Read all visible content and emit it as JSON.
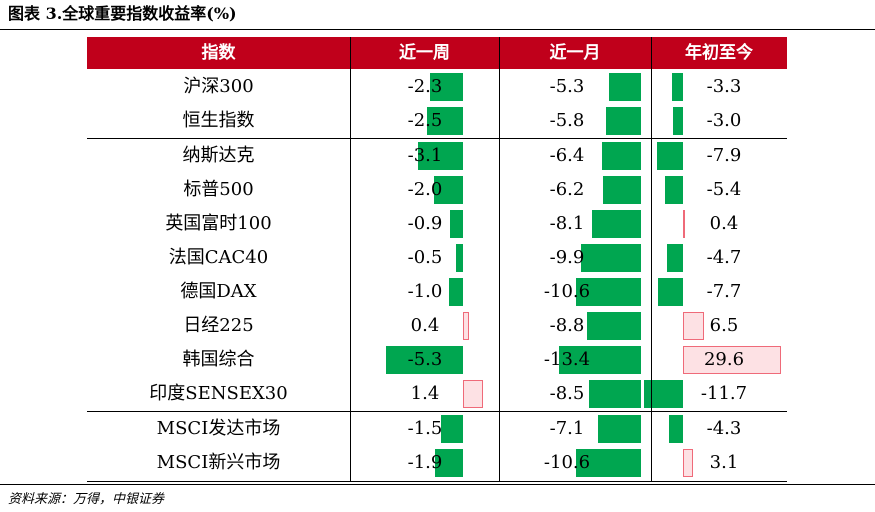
{
  "title": "图表 3.全球重要指数收益率(%)",
  "source": "资料来源：万得，中银证券",
  "columns": [
    "指数",
    "近一周",
    "近一月",
    "年初至今"
  ],
  "colors": {
    "header_bg": "#c0001b",
    "negative_bar": "#00a650",
    "positive_bar": "#fde1e4",
    "positive_bar_border": "#ef6a79"
  },
  "rows": [
    {
      "name": "沪深300",
      "week": "-2.3",
      "month": "-5.3",
      "ytd": "-3.3"
    },
    {
      "name": "恒生指数",
      "week": "-2.5",
      "month": "-5.8",
      "ytd": "-3.0"
    },
    {
      "name": "纳斯达克",
      "week": "-3.1",
      "month": "-6.4",
      "ytd": "-7.9"
    },
    {
      "name": "标普500",
      "week": "-2.0",
      "month": "-6.2",
      "ytd": "-5.4"
    },
    {
      "name": "英国富时100",
      "week": "-0.9",
      "month": "-8.1",
      "ytd": "0.4"
    },
    {
      "name": "法国CAC40",
      "week": "-0.5",
      "month": "-9.9",
      "ytd": "-4.7"
    },
    {
      "name": "德国DAX",
      "week": "-1.0",
      "month": "-10.6",
      "ytd": "-7.7"
    },
    {
      "name": "日经225",
      "week": "0.4",
      "month": "-8.8",
      "ytd": "6.5"
    },
    {
      "name": "韩国综合",
      "week": "-5.3",
      "month": "-13.4",
      "ytd": "29.6"
    },
    {
      "name": "印度SENSEX30",
      "week": "1.4",
      "month": "-8.5",
      "ytd": "-11.7"
    },
    {
      "name": "MSCI发达市场",
      "week": "-1.5",
      "month": "-7.1",
      "ytd": "-4.3"
    },
    {
      "name": "MSCI新兴市场",
      "week": "-1.9",
      "month": "-10.6",
      "ytd": "3.1"
    }
  ]
}
